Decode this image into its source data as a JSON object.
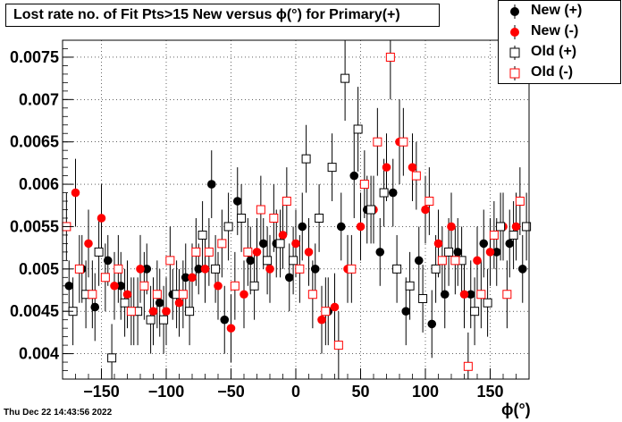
{
  "title": "Lost rate no. of Fit Pts>15 New versus ϕ(°) for Primary(+)",
  "timestamp": "Thu Dec 22 14:43:56 2022",
  "chart_data": {
    "type": "scatter",
    "xlabel": "ϕ(°)",
    "ylabel": "",
    "xlim": [
      -180,
      180
    ],
    "ylim": [
      0.0037,
      0.0077
    ],
    "grid": true,
    "legend_position": "top-right",
    "x_ticks": [
      -150,
      -100,
      -50,
      0,
      50,
      100,
      150
    ],
    "x_tick_labels": [
      "−150",
      "−100",
      "−50",
      "0",
      "50",
      "100",
      "150"
    ],
    "y_ticks": [
      0.004,
      0.0045,
      0.005,
      0.0055,
      0.006,
      0.0065,
      0.007,
      0.0075
    ],
    "y_tick_labels": [
      "0.004",
      "0.0045",
      "0.005",
      "0.0055",
      "0.006",
      "0.0065",
      "0.007",
      "0.0075"
    ],
    "series": [
      {
        "name": "New (+)",
        "marker": "filled-circle",
        "color": "#000000",
        "x": [
          -175,
          -165,
          -155,
          -145,
          -135,
          -125,
          -115,
          -105,
          -95,
          -85,
          -75,
          -65,
          -55,
          -45,
          -35,
          -25,
          -15,
          -5,
          5,
          15,
          25,
          35,
          45,
          55,
          65,
          75,
          85,
          95,
          105,
          115,
          125,
          135,
          145,
          155,
          165,
          175
        ],
        "y": [
          0.0048,
          0.005,
          0.00455,
          0.0051,
          0.0048,
          0.0045,
          0.005,
          0.0046,
          0.0047,
          0.0049,
          0.005,
          0.006,
          0.0044,
          0.0058,
          0.0051,
          0.0053,
          0.0053,
          0.0049,
          0.0055,
          0.005,
          0.0045,
          0.0055,
          0.0061,
          0.0057,
          0.0052,
          0.0059,
          0.0045,
          0.0051,
          0.00435,
          0.0047,
          0.0052,
          0.0047,
          0.0053,
          0.0052,
          0.0053,
          0.005
        ],
        "err": [
          0.0003,
          0.0004,
          0.0004,
          0.0003,
          0.0004,
          0.0004,
          0.0003,
          0.0004,
          0.0003,
          0.0004,
          0.0003,
          0.0004,
          0.0004,
          0.0004,
          0.0004,
          0.0003,
          0.0004,
          0.0004,
          0.0004,
          0.0003,
          0.0004,
          0.0004,
          0.0005,
          0.0004,
          0.0004,
          0.0004,
          0.0004,
          0.0004,
          0.0004,
          0.0004,
          0.0004,
          0.0004,
          0.0004,
          0.0004,
          0.0004,
          0.0004
        ]
      },
      {
        "name": "New (-)",
        "marker": "filled-circle",
        "color": "#ff0000",
        "x": [
          -170,
          -160,
          -150,
          -140,
          -130,
          -120,
          -110,
          -100,
          -90,
          -80,
          -70,
          -60,
          -50,
          -40,
          -30,
          -20,
          -10,
          0,
          10,
          20,
          30,
          40,
          50,
          60,
          70,
          80,
          90,
          100,
          110,
          120,
          130,
          140,
          150,
          160,
          170
        ],
        "y": [
          0.0059,
          0.0053,
          0.0056,
          0.0048,
          0.0047,
          0.005,
          0.0045,
          0.0045,
          0.0046,
          0.0049,
          0.005,
          0.0048,
          0.0043,
          0.0047,
          0.0052,
          0.005,
          0.0054,
          0.0053,
          0.0052,
          0.0044,
          0.00455,
          0.005,
          0.0055,
          0.0057,
          0.0062,
          0.0065,
          0.0062,
          0.0057,
          0.0053,
          0.0055,
          0.0047,
          0.0051,
          0.0052,
          0.0055,
          0.0055
        ],
        "err": [
          0.0004,
          0.0004,
          0.0004,
          0.0004,
          0.0004,
          0.0004,
          0.0004,
          0.0004,
          0.0004,
          0.0004,
          0.0004,
          0.0004,
          0.0004,
          0.0004,
          0.0004,
          0.0004,
          0.0004,
          0.0004,
          0.0004,
          0.0004,
          0.0004,
          0.0004,
          0.0004,
          0.0004,
          0.0004,
          0.0005,
          0.0004,
          0.0004,
          0.0004,
          0.0004,
          0.0004,
          0.0004,
          0.0004,
          0.0004,
          0.0004
        ]
      },
      {
        "name": "Old (+)",
        "marker": "open-square",
        "color": "#000000",
        "x": [
          -172,
          -162,
          -152,
          -142,
          -132,
          -122,
          -112,
          -102,
          -92,
          -82,
          -72,
          -62,
          -52,
          -42,
          -32,
          -22,
          -12,
          -2,
          8,
          18,
          28,
          38,
          48,
          58,
          68,
          78,
          88,
          98,
          108,
          118,
          128,
          138,
          148,
          158,
          168,
          178
        ],
        "y": [
          0.0045,
          0.0047,
          0.0052,
          0.00395,
          0.0046,
          0.0045,
          0.0044,
          0.0044,
          0.0047,
          0.0045,
          0.0054,
          0.005,
          0.0055,
          0.0056,
          0.0048,
          0.0051,
          0.0053,
          0.0051,
          0.0063,
          0.0056,
          0.0062,
          0.00725,
          0.00665,
          0.0057,
          0.0059,
          0.005,
          0.0048,
          0.00465,
          0.005,
          0.0052,
          0.0051,
          0.0045,
          0.0046,
          0.0055,
          0.0054,
          0.0055
        ],
        "err": [
          0.0004,
          0.0004,
          0.0004,
          0.0004,
          0.0004,
          0.0004,
          0.0004,
          0.0004,
          0.0004,
          0.0004,
          0.0004,
          0.0004,
          0.0004,
          0.0004,
          0.0004,
          0.0004,
          0.0004,
          0.0004,
          0.0004,
          0.0004,
          0.0004,
          0.0005,
          0.0005,
          0.0004,
          0.0004,
          0.0004,
          0.0004,
          0.0004,
          0.0004,
          0.0004,
          0.0004,
          0.0004,
          0.0004,
          0.0004,
          0.0004,
          0.0004
        ]
      },
      {
        "name": "Old (-)",
        "marker": "open-square",
        "color": "#ff0000",
        "x": [
          -177,
          -167,
          -157,
          -147,
          -137,
          -127,
          -117,
          -107,
          -97,
          -87,
          -77,
          -67,
          -57,
          -47,
          -37,
          -27,
          -17,
          -7,
          3,
          13,
          23,
          33,
          43,
          53,
          63,
          73,
          83,
          93,
          103,
          113,
          123,
          133,
          143,
          153,
          163,
          173
        ],
        "y": [
          0.0055,
          0.005,
          0.0047,
          0.0049,
          0.005,
          0.0045,
          0.0048,
          0.0047,
          0.0051,
          0.0047,
          0.0052,
          0.0052,
          0.0053,
          0.0048,
          0.0052,
          0.0057,
          0.0056,
          0.0058,
          0.005,
          0.0047,
          0.0045,
          0.0041,
          0.005,
          0.006,
          0.0065,
          0.0075,
          0.0065,
          0.0061,
          0.0058,
          0.0051,
          0.0051,
          0.00385,
          0.0047,
          0.0054,
          0.0047,
          0.0058
        ],
        "err": [
          0.0004,
          0.0004,
          0.0004,
          0.0004,
          0.0004,
          0.0004,
          0.0004,
          0.0004,
          0.0004,
          0.0004,
          0.0004,
          0.0004,
          0.0004,
          0.0004,
          0.0004,
          0.0004,
          0.0004,
          0.0004,
          0.0004,
          0.0004,
          0.0004,
          0.0004,
          0.0004,
          0.0004,
          0.0004,
          0.0005,
          0.0004,
          0.0004,
          0.0004,
          0.0004,
          0.0004,
          0.0004,
          0.0004,
          0.0004,
          0.0004,
          0.0004
        ]
      }
    ]
  }
}
